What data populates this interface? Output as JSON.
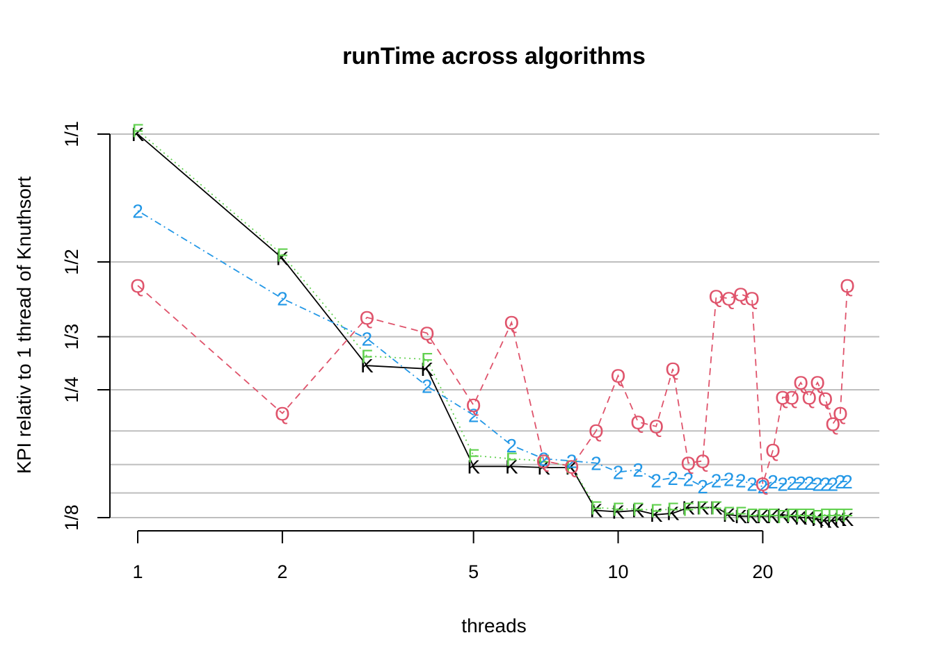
{
  "chart_data": {
    "type": "line",
    "title": "runTime across algorithms",
    "xlabel": "threads",
    "ylabel": "KPI relativ to 1 thread of Knuthsort",
    "x_scale": "log",
    "y_scale": "log",
    "xlim": [
      1,
      30
    ],
    "ylim": [
      0.125,
      1.0
    ],
    "x_ticks": [
      1,
      2,
      5,
      10,
      20
    ],
    "x_tick_labels": [
      "1",
      "2",
      "5",
      "10",
      "20"
    ],
    "y_ticks": [
      1.0,
      0.5,
      0.3333,
      0.25,
      0.125
    ],
    "y_tick_labels": [
      "1/1",
      "1/2",
      "1/3",
      "1/4",
      "1/8"
    ],
    "grid_lines_y": [
      1.0,
      0.5,
      0.3333,
      0.25,
      0.2,
      0.1667,
      0.1429,
      0.125
    ],
    "grid": true,
    "x": [
      1,
      2,
      3,
      4,
      5,
      6,
      7,
      8,
      9,
      10,
      11,
      12,
      13,
      14,
      15,
      16,
      17,
      18,
      19,
      20,
      21,
      22,
      23,
      24,
      25,
      26,
      27,
      28,
      29,
      30
    ],
    "series": [
      {
        "symbol": "K",
        "color": "#000000",
        "dash": "solid",
        "values": [
          1.0,
          0.51,
          0.285,
          0.28,
          0.165,
          0.165,
          0.164,
          0.164,
          0.13,
          0.129,
          0.13,
          0.127,
          0.128,
          0.132,
          0.132,
          0.132,
          0.127,
          0.126,
          0.126,
          0.126,
          0.126,
          0.127,
          0.126,
          0.125,
          0.125,
          0.124,
          0.123,
          0.123,
          0.124,
          0.124
        ]
      },
      {
        "symbol": "F",
        "color": "#61d04f",
        "dash": "dotted",
        "values": [
          1.02,
          0.52,
          0.3,
          0.295,
          0.175,
          0.172,
          0.17,
          0.165,
          0.132,
          0.131,
          0.131,
          0.13,
          0.131,
          0.131,
          0.132,
          0.132,
          0.128,
          0.128,
          0.127,
          0.127,
          0.127,
          0.126,
          0.127,
          0.127,
          0.127,
          0.126,
          0.127,
          0.127,
          0.127,
          0.127
        ]
      },
      {
        "symbol": "2",
        "color": "#2297e6",
        "dash": "dotdash",
        "values": [
          0.66,
          0.41,
          0.33,
          0.255,
          0.218,
          0.185,
          0.172,
          0.17,
          0.168,
          0.16,
          0.162,
          0.153,
          0.155,
          0.154,
          0.148,
          0.153,
          0.154,
          0.153,
          0.15,
          0.148,
          0.152,
          0.15,
          0.151,
          0.151,
          0.151,
          0.15,
          0.15,
          0.15,
          0.152,
          0.152
        ]
      },
      {
        "symbol": "Q",
        "color": "#df536b",
        "dash": "dashed",
        "values": [
          0.44,
          0.22,
          0.37,
          0.34,
          0.23,
          0.36,
          0.17,
          0.165,
          0.2,
          0.27,
          0.21,
          0.205,
          0.28,
          0.168,
          0.17,
          0.415,
          0.41,
          0.42,
          0.41,
          0.15,
          0.18,
          0.24,
          0.24,
          0.26,
          0.24,
          0.26,
          0.238,
          0.208,
          0.22,
          0.44
        ]
      }
    ]
  }
}
